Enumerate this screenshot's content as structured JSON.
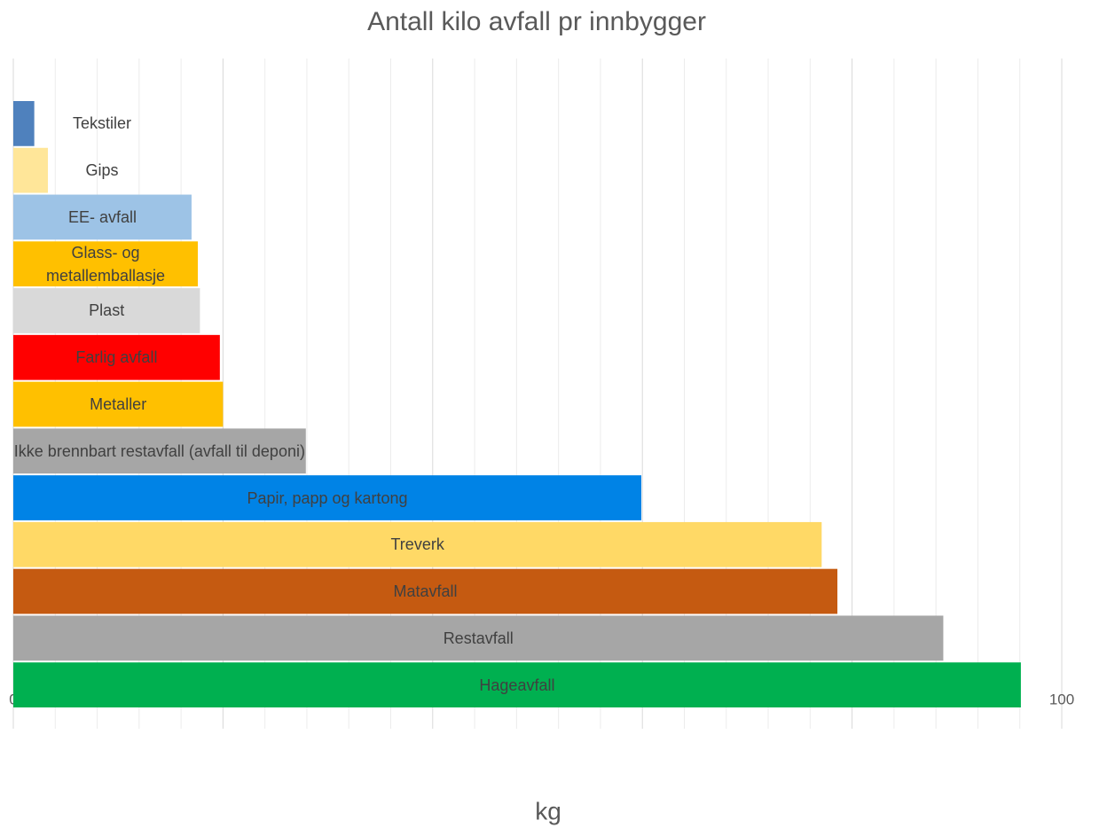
{
  "chart_data": {
    "type": "bar",
    "orientation": "horizontal",
    "title": "Antall kilo avfall pr innbygger",
    "xlabel": "kg",
    "categories": [
      "Tekstiler",
      "Gips",
      "EE- avfall",
      "Glass- og metallemballasje",
      "Plast",
      "Farlig avfall",
      "Metaller",
      "Ikke brennbart restavfall (avfall til deponi)",
      "Papir, papp og kartong",
      "Treverk",
      "Matavfall",
      "Restavfall",
      "Hageavfall"
    ],
    "values": [
      2,
      3.3,
      17,
      17.6,
      17.8,
      19.7,
      20,
      27.9,
      59.9,
      77.1,
      78.6,
      88.7,
      96.1
    ],
    "colors": [
      "#4f81bd",
      "#ffe699",
      "#9dc3e6",
      "#ffc000",
      "#d9d9d9",
      "#ff0000",
      "#ffc000",
      "#a6a6a6",
      "#0083e6",
      "#ffd966",
      "#c55a11",
      "#a6a6a6",
      "#00b050"
    ],
    "xlim": [
      0,
      100
    ],
    "xticks": [
      0,
      20,
      40,
      60,
      80,
      100
    ],
    "minor_xticks": [
      4,
      8,
      12,
      16,
      24,
      28,
      32,
      36,
      44,
      48,
      52,
      56,
      64,
      68,
      72,
      76,
      84,
      88,
      92,
      96
    ],
    "grid": true
  }
}
